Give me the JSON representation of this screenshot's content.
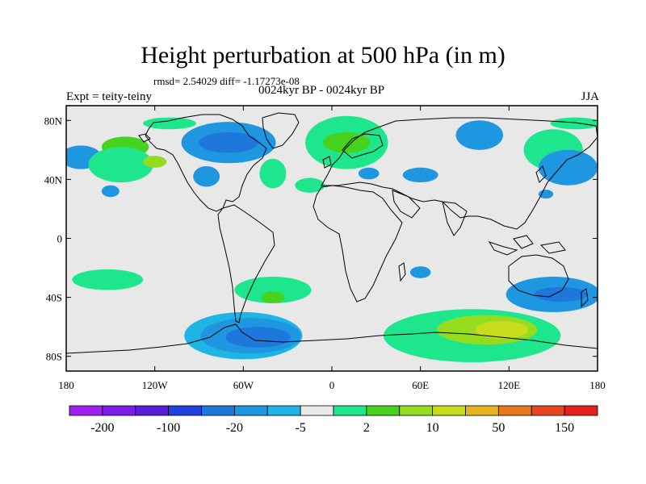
{
  "title": "Height perturbation at 500 hPa (in m)",
  "stats": "rmsd= 2.54029 diff= -1.17273e-08",
  "left_label": "Expt = teity-teiny",
  "center_label": "0024kyr BP - 0024kyr BP",
  "right_label": "JJA",
  "chart_data": {
    "type": "heatmap",
    "projection": "cylindrical-equidistant",
    "xlim": [
      -180,
      180
    ],
    "ylim": [
      -90,
      90
    ],
    "x_ticks": [
      {
        "value": -180,
        "label": "180"
      },
      {
        "value": -120,
        "label": "120W"
      },
      {
        "value": -60,
        "label": "60W"
      },
      {
        "value": 0,
        "label": "0"
      },
      {
        "value": 60,
        "label": "60E"
      },
      {
        "value": 120,
        "label": "120E"
      },
      {
        "value": 180,
        "label": "180"
      }
    ],
    "y_ticks": [
      {
        "value": 80,
        "label": "80N"
      },
      {
        "value": 40,
        "label": "40N"
      },
      {
        "value": 0,
        "label": "0"
      },
      {
        "value": -40,
        "label": "40S"
      },
      {
        "value": -80,
        "label": "80S"
      }
    ],
    "colorbar": {
      "colors": [
        "#a020f0",
        "#7c1ce8",
        "#5a1ed8",
        "#2040e0",
        "#1e78dc",
        "#1e96e0",
        "#1eb4e6",
        "#e8e8e8",
        "#1ee68c",
        "#46d21e",
        "#96dc1e",
        "#c8dc1e",
        "#e6b41e",
        "#e6781e",
        "#e6461e",
        "#e61e1e"
      ],
      "labels": [
        {
          "index": 1,
          "text": "-200"
        },
        {
          "index": 3,
          "text": "-100"
        },
        {
          "index": 5,
          "text": "-20"
        },
        {
          "index": 7,
          "text": "-5"
        },
        {
          "index": 9,
          "text": "2"
        },
        {
          "index": 11,
          "text": "10"
        },
        {
          "index": 13,
          "text": "50"
        },
        {
          "index": 15,
          "text": "150"
        }
      ]
    },
    "regions": [
      {
        "lon": -170,
        "lat": 55,
        "rx": 14,
        "ry": 8,
        "level": 5
      },
      {
        "lon": -140,
        "lat": 62,
        "rx": 16,
        "ry": 7,
        "level": 9
      },
      {
        "lon": -143,
        "lat": 50,
        "rx": 22,
        "ry": 12,
        "level": 8
      },
      {
        "lon": -120,
        "lat": 52,
        "rx": 8,
        "ry": 4,
        "level": 10
      },
      {
        "lon": -150,
        "lat": 32,
        "rx": 6,
        "ry": 4,
        "level": 5
      },
      {
        "lon": -110,
        "lat": 78,
        "rx": 18,
        "ry": 4,
        "level": 8
      },
      {
        "lon": -70,
        "lat": 65,
        "rx": 32,
        "ry": 14,
        "level": 5
      },
      {
        "lon": -70,
        "lat": 65,
        "rx": 20,
        "ry": 7,
        "level": 4
      },
      {
        "lon": -85,
        "lat": 42,
        "rx": 9,
        "ry": 7,
        "level": 5
      },
      {
        "lon": -40,
        "lat": 44,
        "rx": 9,
        "ry": 10,
        "level": 8
      },
      {
        "lon": 10,
        "lat": 65,
        "rx": 28,
        "ry": 18,
        "level": 8
      },
      {
        "lon": 10,
        "lat": 65,
        "rx": 16,
        "ry": 7,
        "level": 9
      },
      {
        "lon": -15,
        "lat": 36,
        "rx": 10,
        "ry": 5,
        "level": 8
      },
      {
        "lon": 25,
        "lat": 44,
        "rx": 7,
        "ry": 4,
        "level": 5
      },
      {
        "lon": 60,
        "lat": 43,
        "rx": 12,
        "ry": 5,
        "level": 5
      },
      {
        "lon": 100,
        "lat": 70,
        "rx": 16,
        "ry": 10,
        "level": 5
      },
      {
        "lon": 150,
        "lat": 60,
        "rx": 20,
        "ry": 14,
        "level": 8
      },
      {
        "lon": 165,
        "lat": 78,
        "rx": 17,
        "ry": 4,
        "level": 8
      },
      {
        "lon": 160,
        "lat": 48,
        "rx": 20,
        "ry": 12,
        "level": 5
      },
      {
        "lon": 145,
        "lat": 30,
        "rx": 5,
        "ry": 3,
        "level": 5
      },
      {
        "lon": -152,
        "lat": -28,
        "rx": 24,
        "ry": 7,
        "level": 8
      },
      {
        "lon": -40,
        "lat": -35,
        "rx": 26,
        "ry": 9,
        "level": 8
      },
      {
        "lon": -40,
        "lat": -40,
        "rx": 8,
        "ry": 4,
        "level": 9
      },
      {
        "lon": 60,
        "lat": -23,
        "rx": 7,
        "ry": 4,
        "level": 5
      },
      {
        "lon": 150,
        "lat": -38,
        "rx": 32,
        "ry": 12,
        "level": 5
      },
      {
        "lon": 155,
        "lat": -38,
        "rx": 18,
        "ry": 5,
        "level": 4
      },
      {
        "lon": -60,
        "lat": -66,
        "rx": 40,
        "ry": 16,
        "level": 6
      },
      {
        "lon": -55,
        "lat": -66,
        "rx": 34,
        "ry": 12,
        "level": 5
      },
      {
        "lon": -50,
        "lat": -67,
        "rx": 22,
        "ry": 7,
        "level": 4
      },
      {
        "lon": 95,
        "lat": -66,
        "rx": 60,
        "ry": 18,
        "level": 8
      },
      {
        "lon": 105,
        "lat": -62,
        "rx": 34,
        "ry": 10,
        "level": 10
      },
      {
        "lon": 115,
        "lat": -62,
        "rx": 18,
        "ry": 6,
        "level": 11
      }
    ]
  }
}
